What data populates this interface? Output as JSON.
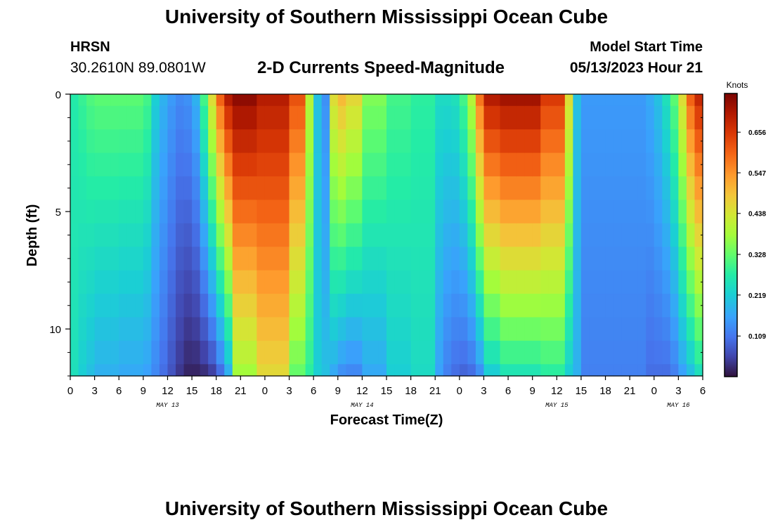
{
  "page": {
    "title_top": "University of Southern Mississippi Ocean Cube",
    "title_bottom": "University of Southern Mississippi Ocean Cube",
    "station": "HRSN",
    "coordinates": "30.2610N  89.0801W",
    "subtitle": "2-D Currents Speed-Magnitude",
    "model_start_label": "Model Start Time",
    "model_start_value": "05/13/2023 Hour 21"
  },
  "chart_data": {
    "type": "heatmap",
    "title": "2-D Currents Speed-Magnitude",
    "xlabel": "Forecast Time(Z)",
    "ylabel": "Depth (ft)",
    "x_unit": "hours since May 13 00Z",
    "xlim": [
      0,
      78
    ],
    "ylim": [
      0,
      12
    ],
    "x_ticks": [
      0,
      3,
      6,
      9,
      12,
      15,
      18,
      21,
      24,
      27,
      30,
      33,
      36,
      39,
      42,
      45,
      48,
      51,
      54,
      57,
      60,
      63,
      66,
      69,
      72,
      75,
      78
    ],
    "x_tick_labels": [
      "0",
      "3",
      "6",
      "9",
      "12",
      "15",
      "18",
      "21",
      "0",
      "3",
      "6",
      "9",
      "12",
      "15",
      "18",
      "21",
      "0",
      "3",
      "6",
      "9",
      "12",
      "15",
      "18",
      "21",
      "0",
      "3",
      "6"
    ],
    "y_ticks": [
      0,
      5,
      10
    ],
    "y_tick_labels": [
      "0",
      "5",
      "10"
    ],
    "date_labels": [
      {
        "x": 12,
        "label": "MAY 13"
      },
      {
        "x": 36,
        "label": "MAY 14"
      },
      {
        "x": 60,
        "label": "MAY 15"
      },
      {
        "x": 75,
        "label": "MAY 16"
      }
    ],
    "colorbar": {
      "title": "Knots",
      "range": [
        0,
        0.76
      ],
      "ticks": [
        0.109,
        0.219,
        0.328,
        0.438,
        0.547,
        0.656
      ],
      "tick_labels": [
        "0.109",
        "0.219",
        "0.328",
        "0.438",
        "0.547",
        "0.656"
      ]
    },
    "depth_levels": [
      0,
      1,
      2,
      3,
      4,
      5,
      6,
      7,
      8,
      9,
      10,
      11,
      12
    ],
    "time_step_hours": 1,
    "columns": [
      {
        "t0": 0,
        "t1": 1,
        "surface": 0.27,
        "bottom": 0.25
      },
      {
        "t0": 1,
        "t1": 2,
        "surface": 0.29,
        "bottom": 0.22
      },
      {
        "t0": 2,
        "t1": 3,
        "surface": 0.31,
        "bottom": 0.2
      },
      {
        "t0": 3,
        "t1": 6,
        "surface": 0.32,
        "bottom": 0.18
      },
      {
        "t0": 6,
        "t1": 9,
        "surface": 0.32,
        "bottom": 0.17
      },
      {
        "t0": 9,
        "t1": 10,
        "surface": 0.3,
        "bottom": 0.16
      },
      {
        "t0": 10,
        "t1": 11,
        "surface": 0.22,
        "bottom": 0.13
      },
      {
        "t0": 11,
        "t1": 12,
        "surface": 0.18,
        "bottom": 0.1
      },
      {
        "t0": 12,
        "t1": 13,
        "surface": 0.15,
        "bottom": 0.07
      },
      {
        "t0": 13,
        "t1": 14,
        "surface": 0.13,
        "bottom": 0.04
      },
      {
        "t0": 14,
        "t1": 15,
        "surface": 0.14,
        "bottom": 0.02
      },
      {
        "t0": 15,
        "t1": 16,
        "surface": 0.18,
        "bottom": 0.02
      },
      {
        "t0": 16,
        "t1": 17,
        "surface": 0.3,
        "bottom": 0.03
      },
      {
        "t0": 17,
        "t1": 18,
        "surface": 0.45,
        "bottom": 0.05
      },
      {
        "t0": 18,
        "t1": 19,
        "surface": 0.6,
        "bottom": 0.1
      },
      {
        "t0": 19,
        "t1": 20,
        "surface": 0.7,
        "bottom": 0.18
      },
      {
        "t0": 20,
        "t1": 23,
        "surface": 0.74,
        "bottom": 0.38
      },
      {
        "t0": 23,
        "t1": 27,
        "surface": 0.7,
        "bottom": 0.46
      },
      {
        "t0": 27,
        "t1": 29,
        "surface": 0.62,
        "bottom": 0.33
      },
      {
        "t0": 29,
        "t1": 30,
        "surface": 0.4,
        "bottom": 0.28
      },
      {
        "t0": 30,
        "t1": 31,
        "surface": 0.2,
        "bottom": 0.22
      },
      {
        "t0": 31,
        "t1": 32,
        "surface": 0.14,
        "bottom": 0.2
      },
      {
        "t0": 32,
        "t1": 33,
        "surface": 0.45,
        "bottom": 0.17
      },
      {
        "t0": 33,
        "t1": 34,
        "surface": 0.5,
        "bottom": 0.14
      },
      {
        "t0": 34,
        "t1": 36,
        "surface": 0.46,
        "bottom": 0.13
      },
      {
        "t0": 36,
        "t1": 39,
        "surface": 0.35,
        "bottom": 0.17
      },
      {
        "t0": 39,
        "t1": 42,
        "surface": 0.3,
        "bottom": 0.22
      },
      {
        "t0": 42,
        "t1": 45,
        "surface": 0.28,
        "bottom": 0.24
      },
      {
        "t0": 45,
        "t1": 46,
        "surface": 0.24,
        "bottom": 0.16
      },
      {
        "t0": 46,
        "t1": 47,
        "surface": 0.24,
        "bottom": 0.12
      },
      {
        "t0": 47,
        "t1": 48,
        "surface": 0.25,
        "bottom": 0.1
      },
      {
        "t0": 48,
        "t1": 49,
        "surface": 0.3,
        "bottom": 0.09
      },
      {
        "t0": 49,
        "t1": 50,
        "surface": 0.4,
        "bottom": 0.1
      },
      {
        "t0": 50,
        "t1": 51,
        "surface": 0.58,
        "bottom": 0.14
      },
      {
        "t0": 51,
        "t1": 53,
        "surface": 0.7,
        "bottom": 0.22
      },
      {
        "t0": 53,
        "t1": 58,
        "surface": 0.72,
        "bottom": 0.26
      },
      {
        "t0": 58,
        "t1": 61,
        "surface": 0.65,
        "bottom": 0.28
      },
      {
        "t0": 61,
        "t1": 62,
        "surface": 0.45,
        "bottom": 0.22
      },
      {
        "t0": 62,
        "t1": 63,
        "surface": 0.2,
        "bottom": 0.18
      },
      {
        "t0": 63,
        "t1": 71,
        "surface": 0.15,
        "bottom": 0.12
      },
      {
        "t0": 71,
        "t1": 72,
        "surface": 0.17,
        "bottom": 0.1
      },
      {
        "t0": 72,
        "t1": 73,
        "surface": 0.2,
        "bottom": 0.1
      },
      {
        "t0": 73,
        "t1": 74,
        "surface": 0.25,
        "bottom": 0.1
      },
      {
        "t0": 74,
        "t1": 75,
        "surface": 0.32,
        "bottom": 0.12
      },
      {
        "t0": 75,
        "t1": 76,
        "surface": 0.45,
        "bottom": 0.16
      },
      {
        "t0": 76,
        "t1": 77,
        "surface": 0.6,
        "bottom": 0.2
      },
      {
        "t0": 77,
        "t1": 78,
        "surface": 0.68,
        "bottom": 0.25
      }
    ]
  }
}
